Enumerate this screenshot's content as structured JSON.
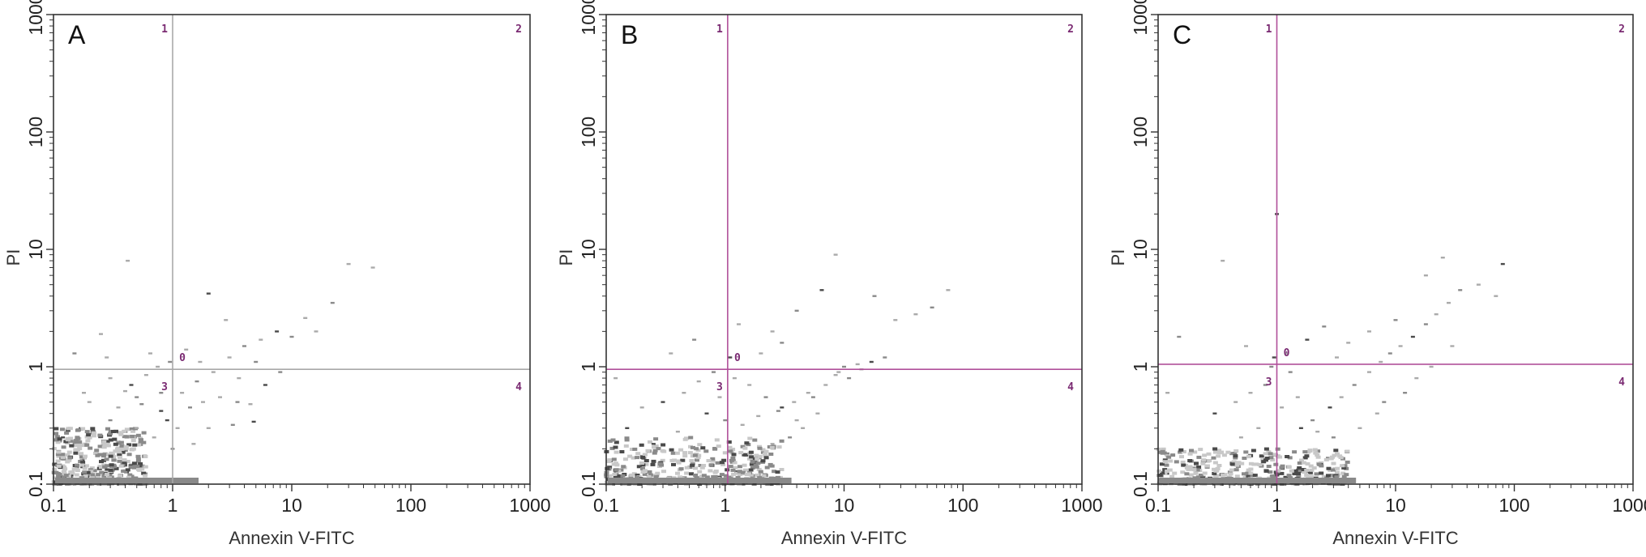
{
  "figure": {
    "colors": {
      "background": "#ffffff",
      "frame": "#333333",
      "gate_line_A": "#a8a8a8",
      "gate_line_BC": "#b0509a",
      "quadrant_label": "#7a2a72",
      "density_light": "#c8c8c8",
      "density_mid": "#8a8a8a",
      "density_dark": "#4a4a4a"
    }
  },
  "chart_data": [
    {
      "type": "scatter",
      "panel_label": "A",
      "xlabel": "Annexin V-FITC",
      "ylabel": "PI",
      "x_scale": "log",
      "y_scale": "log",
      "xlim": [
        0.1,
        1000
      ],
      "ylim": [
        0.1,
        1000
      ],
      "x_ticks": [
        "0.1",
        "1",
        "10",
        "100",
        "1000"
      ],
      "y_ticks": [
        "0.1",
        "1",
        "10",
        "100",
        "1000"
      ],
      "quadrant_gate": {
        "x": 1.0,
        "y": 0.95
      },
      "quadrant_labels": [
        "1",
        "2",
        "3",
        "4",
        "0"
      ],
      "dense_region": {
        "x": [
          0.1,
          0.6
        ],
        "y": [
          0.1,
          0.3
        ]
      },
      "points": [
        [
          0.45,
          0.7
        ],
        [
          0.6,
          0.85
        ],
        [
          0.75,
          1.0
        ],
        [
          0.5,
          0.55
        ],
        [
          0.35,
          0.45
        ],
        [
          0.4,
          0.62
        ],
        [
          0.55,
          0.48
        ],
        [
          0.8,
          0.42
        ],
        [
          1.2,
          0.6
        ],
        [
          1.6,
          0.75
        ],
        [
          2.2,
          0.9
        ],
        [
          3.0,
          1.2
        ],
        [
          4.0,
          1.5
        ],
        [
          5.5,
          1.7
        ],
        [
          7.5,
          2.0
        ],
        [
          10,
          1.8
        ],
        [
          13,
          2.6
        ],
        [
          16,
          2.0
        ],
        [
          22,
          3.5
        ],
        [
          30,
          7.5
        ],
        [
          48,
          7.0
        ],
        [
          2.0,
          4.2
        ],
        [
          0.42,
          8.0
        ],
        [
          0.25,
          1.9
        ],
        [
          0.15,
          1.3
        ],
        [
          0.18,
          0.6
        ],
        [
          0.2,
          0.5
        ],
        [
          0.3,
          0.35
        ],
        [
          0.9,
          0.35
        ],
        [
          1.1,
          0.3
        ],
        [
          1.4,
          0.45
        ],
        [
          1.8,
          0.5
        ],
        [
          2.5,
          0.55
        ],
        [
          3.5,
          0.5
        ],
        [
          4.5,
          0.48
        ],
        [
          6,
          0.7
        ],
        [
          8,
          0.9
        ],
        [
          2.8,
          2.5
        ],
        [
          1.3,
          1.4
        ],
        [
          0.95,
          1.1
        ],
        [
          0.65,
          1.3
        ],
        [
          0.3,
          0.8
        ],
        [
          0.12,
          0.25
        ],
        [
          0.5,
          0.3
        ],
        [
          0.7,
          0.25
        ],
        [
          1.0,
          0.2
        ],
        [
          1.5,
          0.22
        ],
        [
          2.0,
          0.3
        ],
        [
          3.2,
          0.32
        ],
        [
          4.8,
          0.34
        ],
        [
          0.28,
          1.2
        ],
        [
          0.8,
          0.6
        ],
        [
          1.7,
          1.1
        ],
        [
          3.6,
          0.8
        ],
        [
          5,
          1.1
        ]
      ]
    },
    {
      "type": "scatter",
      "panel_label": "B",
      "xlabel": "Annexin V-FITC",
      "ylabel": "PI",
      "x_scale": "log",
      "y_scale": "log",
      "xlim": [
        0.1,
        1000
      ],
      "ylim": [
        0.1,
        1000
      ],
      "x_ticks": [
        "0.1",
        "1",
        "10",
        "100",
        "1000"
      ],
      "y_ticks": [
        "0.1",
        "1",
        "10",
        "100",
        "1000"
      ],
      "quadrant_gate": {
        "x": 1.05,
        "y": 0.95
      },
      "quadrant_labels": [
        "1",
        "2",
        "3",
        "4",
        "0"
      ],
      "dense_region": {
        "x": [
          0.1,
          3.0
        ],
        "y": [
          0.1,
          0.25
        ]
      },
      "points": [
        [
          0.3,
          0.5
        ],
        [
          0.45,
          0.6
        ],
        [
          0.6,
          0.75
        ],
        [
          0.8,
          0.9
        ],
        [
          1.2,
          0.8
        ],
        [
          1.6,
          0.7
        ],
        [
          2.2,
          0.55
        ],
        [
          3,
          0.45
        ],
        [
          4,
          0.35
        ],
        [
          5.5,
          0.55
        ],
        [
          7,
          0.7
        ],
        [
          8.5,
          0.85
        ],
        [
          10,
          1.0
        ],
        [
          13,
          1.05
        ],
        [
          17,
          1.1
        ],
        [
          22,
          1.2
        ],
        [
          6,
          0.4
        ],
        [
          4.5,
          0.3
        ],
        [
          3.5,
          0.25
        ],
        [
          2.5,
          0.22
        ],
        [
          0.2,
          0.45
        ],
        [
          0.15,
          0.3
        ],
        [
          0.12,
          0.8
        ],
        [
          0.35,
          1.3
        ],
        [
          0.55,
          1.7
        ],
        [
          1.3,
          2.3
        ],
        [
          2.5,
          2.0
        ],
        [
          4,
          3.0
        ],
        [
          6.5,
          4.5
        ],
        [
          8.5,
          9.0
        ],
        [
          18,
          4.0
        ],
        [
          27,
          2.5
        ],
        [
          40,
          2.8
        ],
        [
          55,
          3.2
        ],
        [
          75,
          4.5
        ],
        [
          0.7,
          0.4
        ],
        [
          1.0,
          0.35
        ],
        [
          1.4,
          0.32
        ],
        [
          1.9,
          0.38
        ],
        [
          2.8,
          0.42
        ],
        [
          3.8,
          0.5
        ],
        [
          5,
          0.6
        ],
        [
          0.25,
          0.22
        ],
        [
          0.4,
          0.28
        ],
        [
          9,
          0.9
        ],
        [
          11,
          0.8
        ],
        [
          14,
          0.95
        ],
        [
          2,
          1.3
        ],
        [
          3,
          1.6
        ],
        [
          1.1,
          1.2
        ],
        [
          0.9,
          0.55
        ]
      ]
    },
    {
      "type": "scatter",
      "panel_label": "C",
      "xlabel": "Annexin V-FITC",
      "ylabel": "PI",
      "x_scale": "log",
      "y_scale": "log",
      "xlim": [
        0.1,
        1000
      ],
      "ylim": [
        0.1,
        1000
      ],
      "x_ticks": [
        "0.1",
        "1",
        "10",
        "100",
        "1000"
      ],
      "y_ticks": [
        "0.1",
        "1",
        "10",
        "100",
        "1000"
      ],
      "quadrant_gate": {
        "x": 1.0,
        "y": 1.05
      },
      "quadrant_labels": [
        "1",
        "2",
        "3",
        "4",
        "0"
      ],
      "dense_region": {
        "x": [
          0.1,
          4.0
        ],
        "y": [
          0.1,
          0.2
        ]
      },
      "points": [
        [
          0.3,
          0.4
        ],
        [
          0.45,
          0.5
        ],
        [
          0.6,
          0.6
        ],
        [
          0.8,
          0.7
        ],
        [
          1.1,
          0.45
        ],
        [
          1.5,
          0.55
        ],
        [
          2,
          0.35
        ],
        [
          2.8,
          0.45
        ],
        [
          3.5,
          0.55
        ],
        [
          4.5,
          0.7
        ],
        [
          6,
          0.9
        ],
        [
          7.5,
          1.1
        ],
        [
          9,
          1.3
        ],
        [
          11,
          1.5
        ],
        [
          14,
          1.8
        ],
        [
          18,
          2.3
        ],
        [
          22,
          2.8
        ],
        [
          28,
          3.5
        ],
        [
          35,
          4.5
        ],
        [
          50,
          5.0
        ],
        [
          70,
          4.0
        ],
        [
          80,
          7.5
        ],
        [
          25,
          8.5
        ],
        [
          18,
          6.0
        ],
        [
          10,
          2.5
        ],
        [
          6,
          2.0
        ],
        [
          4,
          1.6
        ],
        [
          2.5,
          2.2
        ],
        [
          1.8,
          1.7
        ],
        [
          1.2,
          1.3
        ],
        [
          0.9,
          1.0
        ],
        [
          0.55,
          1.5
        ],
        [
          0.35,
          8.0
        ],
        [
          0.15,
          1.8
        ],
        [
          0.12,
          0.6
        ],
        [
          1.0,
          20
        ],
        [
          3,
          0.25
        ],
        [
          5,
          0.3
        ],
        [
          7,
          0.4
        ],
        [
          12,
          0.6
        ],
        [
          15,
          0.8
        ],
        [
          2.2,
          0.28
        ],
        [
          1.6,
          0.3
        ],
        [
          0.7,
          0.3
        ],
        [
          0.5,
          0.25
        ],
        [
          8,
          0.5
        ],
        [
          20,
          1.0
        ],
        [
          30,
          1.5
        ],
        [
          1.3,
          0.9
        ],
        [
          0.95,
          1.2
        ],
        [
          3.2,
          1.2
        ]
      ]
    }
  ]
}
